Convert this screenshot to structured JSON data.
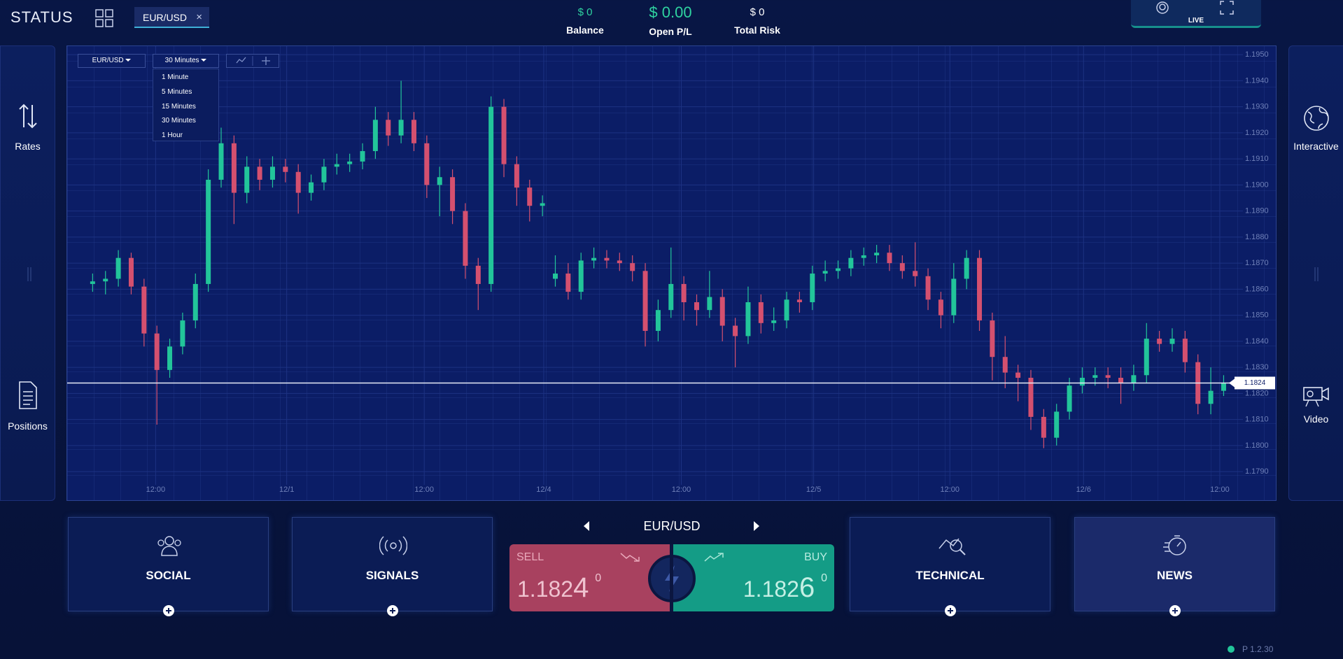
{
  "header": {
    "logo": "STATUS",
    "tab": "EUR/USD",
    "tab_close": "×",
    "stats": [
      {
        "value": "$ 0",
        "label": "Balance"
      },
      {
        "value": "$ 0.00",
        "label": "Open P/L"
      },
      {
        "value": "$ 0",
        "label": "Total Risk"
      }
    ],
    "mode": "LIVE"
  },
  "sidebar": {
    "left": [
      "Rates",
      "Positions"
    ],
    "right": [
      "Interactive",
      "Video"
    ]
  },
  "chart_data": {
    "type": "candlestick",
    "symbol": "EUR/USD",
    "timeframe": "30 Minutes",
    "timeframe_options": [
      "1 Minute",
      "5 Minutes",
      "15 Minutes",
      "30 Minutes",
      "1 Hour"
    ],
    "up_color": "#22c59a",
    "down_color": "#d4506f",
    "grid": true,
    "xlim": [
      -1,
      89.5
    ],
    "xticks": [
      {
        "value": 4.9,
        "label": "12:00"
      },
      {
        "value": 15.1,
        "label": "12/1"
      },
      {
        "value": 25.8,
        "label": "12:00"
      },
      {
        "value": 35.1,
        "label": "12/4"
      },
      {
        "value": 45.8,
        "label": "12:00"
      },
      {
        "value": 56.1,
        "label": "12/5"
      },
      {
        "value": 66.7,
        "label": "12:00"
      },
      {
        "value": 77.1,
        "label": "12/6"
      },
      {
        "value": 87.7,
        "label": "12:00"
      }
    ],
    "ylim": [
      1.1786,
      1.1953
    ],
    "yticks": [
      {
        "value": 1.179,
        "label": "1.1790"
      },
      {
        "value": 1.18,
        "label": "1.1800"
      },
      {
        "value": 1.181,
        "label": "1.1810"
      },
      {
        "value": 1.182,
        "label": "1.1820"
      },
      {
        "value": 1.183,
        "label": "1.1830"
      },
      {
        "value": 1.184,
        "label": "1.1840"
      },
      {
        "value": 1.185,
        "label": "1.1850"
      },
      {
        "value": 1.186,
        "label": "1.1860"
      },
      {
        "value": 1.187,
        "label": "1.1870"
      },
      {
        "value": 1.188,
        "label": "1.1880"
      },
      {
        "value": 1.189,
        "label": "1.1890"
      },
      {
        "value": 1.19,
        "label": "1.1900"
      },
      {
        "value": 1.191,
        "label": "1.1910"
      },
      {
        "value": 1.192,
        "label": "1.1920"
      },
      {
        "value": 1.193,
        "label": "1.1930"
      },
      {
        "value": 1.194,
        "label": "1.1940"
      },
      {
        "value": 1.195,
        "label": "1.1950"
      }
    ],
    "last_price": 1.1824,
    "open": [
      1.1862,
      1.1863,
      1.1864,
      1.1872,
      1.1861,
      1.1843,
      1.1829,
      1.1838,
      1.1848,
      1.1862,
      1.1902,
      1.1916,
      1.1897,
      1.1907,
      1.1902,
      1.1907,
      1.1905,
      1.1897,
      1.1901,
      1.1907,
      1.1908,
      1.1909,
      1.1913,
      1.1925,
      1.1919,
      1.1925,
      1.1916,
      1.19,
      1.1903,
      1.189,
      1.1869,
      1.1862,
      1.193,
      1.1908,
      1.1899,
      1.1892,
      1.1864,
      1.1866,
      1.1859,
      1.1871,
      1.1872,
      1.1871,
      1.187,
      1.1867,
      1.1844,
      1.1852,
      1.1862,
      1.1855,
      1.1852,
      1.1857,
      1.1846,
      1.1842,
      1.1855,
      1.1847,
      1.1848,
      1.1856,
      1.1855,
      1.1866,
      1.1867,
      1.1868,
      1.1872,
      1.1873,
      1.1874,
      1.187,
      1.1867,
      1.1865,
      1.1856,
      1.185,
      1.1864,
      1.1872,
      1.1848,
      1.1834,
      1.1828,
      1.1826,
      1.1811,
      1.1803,
      1.1813,
      1.1823,
      1.1826,
      1.1827,
      1.1826,
      1.1824,
      1.1827,
      1.1841,
      1.1839,
      1.1841,
      1.1832,
      1.1816,
      1.1821
    ],
    "high": [
      1.1866,
      1.1867,
      1.1875,
      1.1874,
      1.1864,
      1.1846,
      1.1841,
      1.1851,
      1.1866,
      1.1906,
      1.1922,
      1.1919,
      1.1911,
      1.191,
      1.1911,
      1.191,
      1.1908,
      1.1904,
      1.191,
      1.1912,
      1.1912,
      1.1916,
      1.193,
      1.1928,
      1.194,
      1.1928,
      1.1919,
      1.1907,
      1.1906,
      1.1893,
      1.1872,
      1.1934,
      1.1933,
      1.1911,
      1.1902,
      1.1896,
      1.1873,
      1.187,
      1.1874,
      1.1876,
      1.1875,
      1.1874,
      1.1873,
      1.187,
      1.1856,
      1.1876,
      1.1865,
      1.1858,
      1.1867,
      1.186,
      1.1849,
      1.1861,
      1.1858,
      1.1853,
      1.1859,
      1.1859,
      1.1869,
      1.1871,
      1.1871,
      1.1875,
      1.1876,
      1.1877,
      1.1877,
      1.1873,
      1.1878,
      1.1868,
      1.1859,
      1.187,
      1.1875,
      1.1875,
      1.1851,
      1.1842,
      1.1831,
      1.1829,
      1.1814,
      1.1816,
      1.1826,
      1.183,
      1.183,
      1.183,
      1.183,
      1.1831,
      1.1847,
      1.1844,
      1.1845,
      1.1844,
      1.1835,
      1.183,
      1.1827
    ],
    "low": [
      1.1859,
      1.1858,
      1.1861,
      1.1858,
      1.1838,
      1.1808,
      1.1826,
      1.1835,
      1.1845,
      1.1859,
      1.1899,
      1.1885,
      1.1893,
      1.1898,
      1.1899,
      1.1901,
      1.1889,
      1.1894,
      1.1898,
      1.1904,
      1.1905,
      1.1906,
      1.191,
      1.1915,
      1.1916,
      1.1913,
      1.1895,
      1.1888,
      1.1885,
      1.1864,
      1.1852,
      1.1859,
      1.1903,
      1.1892,
      1.1886,
      1.1888,
      1.1861,
      1.1856,
      1.1856,
      1.1868,
      1.1868,
      1.1867,
      1.1863,
      1.1838,
      1.184,
      1.1849,
      1.1848,
      1.1846,
      1.1849,
      1.184,
      1.183,
      1.1839,
      1.1843,
      1.1844,
      1.1845,
      1.1851,
      1.1852,
      1.1863,
      1.1864,
      1.1865,
      1.1869,
      1.187,
      1.1867,
      1.1864,
      1.1861,
      1.1852,
      1.1845,
      1.1847,
      1.186,
      1.1844,
      1.1825,
      1.1822,
      1.1817,
      1.1806,
      1.1799,
      1.18,
      1.181,
      1.182,
      1.1823,
      1.1822,
      1.1816,
      1.1821,
      1.1824,
      1.1836,
      1.1836,
      1.1828,
      1.1812,
      1.1812,
      1.1819
    ],
    "close": [
      1.1863,
      1.1864,
      1.1872,
      1.1861,
      1.1843,
      1.1829,
      1.1838,
      1.1848,
      1.1862,
      1.1902,
      1.1916,
      1.1897,
      1.1907,
      1.1902,
      1.1907,
      1.1905,
      1.1897,
      1.1901,
      1.1907,
      1.1908,
      1.1909,
      1.1913,
      1.1925,
      1.1919,
      1.1925,
      1.1916,
      1.19,
      1.1903,
      1.189,
      1.1869,
      1.1862,
      1.193,
      1.1908,
      1.1899,
      1.1892,
      1.1893,
      1.1866,
      1.1859,
      1.1871,
      1.1872,
      1.1871,
      1.187,
      1.1867,
      1.1844,
      1.1852,
      1.1862,
      1.1855,
      1.1852,
      1.1857,
      1.1846,
      1.1842,
      1.1855,
      1.1847,
      1.1848,
      1.1856,
      1.1855,
      1.1866,
      1.1867,
      1.1868,
      1.1872,
      1.1873,
      1.1874,
      1.187,
      1.1867,
      1.1865,
      1.1856,
      1.185,
      1.1864,
      1.1872,
      1.1848,
      1.1834,
      1.1828,
      1.1826,
      1.1811,
      1.1803,
      1.1813,
      1.1823,
      1.1826,
      1.1827,
      1.1826,
      1.1824,
      1.1827,
      1.1841,
      1.1839,
      1.1841,
      1.1832,
      1.1816,
      1.1821,
      1.1824
    ]
  },
  "panels": [
    "SOCIAL",
    "SIGNALS",
    "TECHNICAL",
    "NEWS"
  ],
  "trade": {
    "symbol": "EUR/USD",
    "sell": {
      "label": "SELL",
      "price": "1.182",
      "pip": "4",
      "fraction": "0"
    },
    "buy": {
      "label": "BUY",
      "price": "1.182",
      "pip": "6",
      "fraction": "0"
    }
  },
  "footer": {
    "version": "P 1.2.30"
  }
}
